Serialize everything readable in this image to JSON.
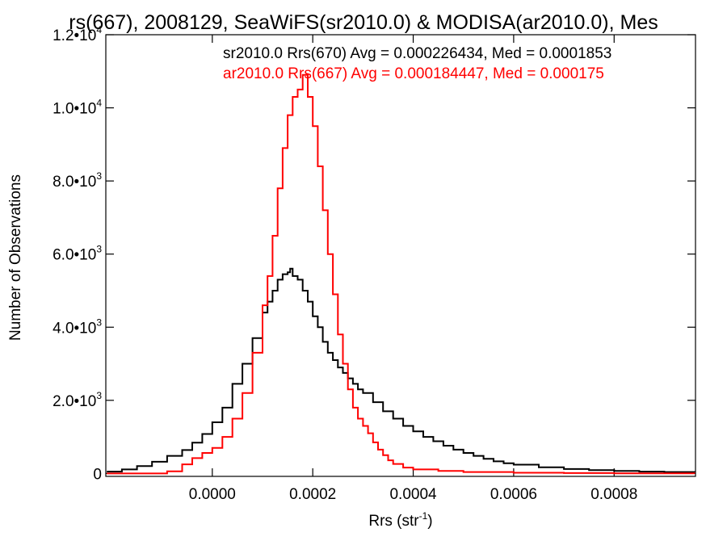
{
  "chart_data": {
    "type": "line",
    "title": "rs(667), 2008129, SeaWiFS(sr2010.0) & MODISA(ar2010.0), Mes",
    "xlabel": "Rrs (str",
    "xlabel_sup": "-1",
    "xlabel_end": ")",
    "ylabel": "Number of Observations",
    "xlim": [
      -0.000212,
      0.000962
    ],
    "ylim": [
      -80,
      12000
    ],
    "grid": false,
    "legend_position": "top-right",
    "x_ticks": [
      {
        "value": 0.0,
        "label": "0.0000"
      },
      {
        "value": 0.0002,
        "label": "0.0002"
      },
      {
        "value": 0.0004,
        "label": "0.0004"
      },
      {
        "value": 0.0006,
        "label": "0.0006"
      },
      {
        "value": 0.0008,
        "label": "0.0008"
      }
    ],
    "y_ticks": [
      {
        "value": 0,
        "base": "0",
        "exp": ""
      },
      {
        "value": 2000,
        "base": "2.0•10",
        "exp": "3"
      },
      {
        "value": 4000,
        "base": "4.0•10",
        "exp": "3"
      },
      {
        "value": 6000,
        "base": "6.0•10",
        "exp": "3"
      },
      {
        "value": 8000,
        "base": "8.0•10",
        "exp": "3"
      },
      {
        "value": 10000,
        "base": "1.0•10",
        "exp": "4"
      },
      {
        "value": 12000,
        "base": "1.2•10",
        "exp": "4"
      }
    ],
    "series": [
      {
        "name": "sr2010.0 Rrs(670) Avg = 0.000226434, Med = 0.0001853",
        "color": "#000000",
        "points": [
          [
            -0.00021,
            50
          ],
          [
            -0.00018,
            110
          ],
          [
            -0.00015,
            200
          ],
          [
            -0.00012,
            320
          ],
          [
            -9e-05,
            480
          ],
          [
            -6e-05,
            640
          ],
          [
            -4e-05,
            840
          ],
          [
            -2e-05,
            1080
          ],
          [
            0.0,
            1400
          ],
          [
            2e-05,
            1800
          ],
          [
            4e-05,
            2450
          ],
          [
            6e-05,
            3000
          ],
          [
            8e-05,
            3700
          ],
          [
            0.0001,
            4400
          ],
          [
            0.00011,
            4700
          ],
          [
            0.00012,
            5000
          ],
          [
            0.00013,
            5300
          ],
          [
            0.00014,
            5450
          ],
          [
            0.00015,
            5500
          ],
          [
            0.000155,
            5600
          ],
          [
            0.00016,
            5400
          ],
          [
            0.00017,
            5300
          ],
          [
            0.00018,
            5000
          ],
          [
            0.00019,
            4700
          ],
          [
            0.0002,
            4300
          ],
          [
            0.00021,
            4000
          ],
          [
            0.00022,
            3600
          ],
          [
            0.00023,
            3300
          ],
          [
            0.00024,
            3100
          ],
          [
            0.00025,
            2900
          ],
          [
            0.00026,
            2750
          ],
          [
            0.00027,
            2600
          ],
          [
            0.00028,
            2450
          ],
          [
            0.00029,
            2300
          ],
          [
            0.0003,
            2200
          ],
          [
            0.00032,
            1950
          ],
          [
            0.00034,
            1700
          ],
          [
            0.00036,
            1500
          ],
          [
            0.00038,
            1300
          ],
          [
            0.0004,
            1150
          ],
          [
            0.00042,
            1000
          ],
          [
            0.00044,
            880
          ],
          [
            0.00046,
            760
          ],
          [
            0.00048,
            650
          ],
          [
            0.0005,
            560
          ],
          [
            0.00052,
            480
          ],
          [
            0.00054,
            400
          ],
          [
            0.00056,
            330
          ],
          [
            0.00058,
            280
          ],
          [
            0.0006,
            240
          ],
          [
            0.00065,
            170
          ],
          [
            0.0007,
            120
          ],
          [
            0.00075,
            90
          ],
          [
            0.0008,
            70
          ],
          [
            0.00085,
            50
          ],
          [
            0.0009,
            40
          ],
          [
            0.00096,
            30
          ]
        ]
      },
      {
        "name": "ar2010.0 Rrs(667) Avg = 0.000184447, Med = 0.000175",
        "color": "#ff0000",
        "points": [
          [
            -0.00021,
            0
          ],
          [
            -0.0001,
            0
          ],
          [
            -9e-05,
            60
          ],
          [
            -6e-05,
            250
          ],
          [
            -4e-05,
            420
          ],
          [
            -2e-05,
            560
          ],
          [
            0.0,
            700
          ],
          [
            2e-05,
            1000
          ],
          [
            4e-05,
            1500
          ],
          [
            6e-05,
            2200
          ],
          [
            8e-05,
            3300
          ],
          [
            0.0001,
            4600
          ],
          [
            0.00011,
            5400
          ],
          [
            0.00012,
            6500
          ],
          [
            0.00013,
            7800
          ],
          [
            0.00014,
            8900
          ],
          [
            0.00015,
            9800
          ],
          [
            0.00016,
            10300
          ],
          [
            0.00017,
            10500
          ],
          [
            0.00018,
            10900
          ],
          [
            0.00019,
            10300
          ],
          [
            0.0002,
            9500
          ],
          [
            0.00021,
            8400
          ],
          [
            0.00022,
            7200
          ],
          [
            0.00023,
            6000
          ],
          [
            0.00024,
            4900
          ],
          [
            0.00025,
            3800
          ],
          [
            0.00026,
            3000
          ],
          [
            0.00027,
            2300
          ],
          [
            0.00028,
            1800
          ],
          [
            0.00029,
            1500
          ],
          [
            0.0003,
            1300
          ],
          [
            0.00031,
            1100
          ],
          [
            0.00032,
            850
          ],
          [
            0.00033,
            650
          ],
          [
            0.00034,
            500
          ],
          [
            0.00035,
            360
          ],
          [
            0.00036,
            260
          ],
          [
            0.00038,
            160
          ],
          [
            0.0004,
            110
          ],
          [
            0.00045,
            70
          ],
          [
            0.0005,
            40
          ],
          [
            0.0006,
            20
          ],
          [
            0.0007,
            10
          ],
          [
            0.0008,
            5
          ],
          [
            0.00096,
            0
          ]
        ]
      }
    ]
  }
}
